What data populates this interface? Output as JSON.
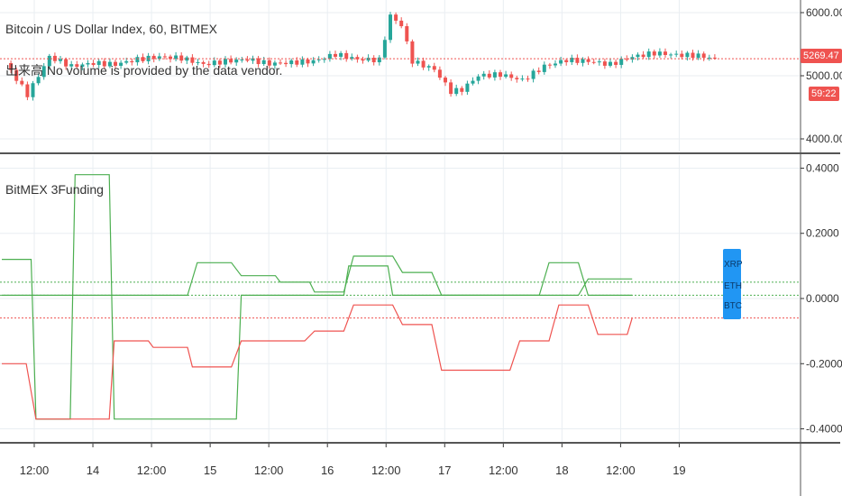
{
  "top_panel": {
    "title": "Bitcoin / US Dollar Index, 60, BITMEX",
    "volume_note": "出来高 No volume is provided by the data vendor.",
    "price_tag": "5269.47",
    "countdown_tag": "59:22",
    "price_line": 5269.47
  },
  "bottom_panel": {
    "title": "BitMEX 3Funding",
    "legend_tags": [
      "XRP",
      "ETH",
      "BTC"
    ]
  },
  "colors": {
    "up": "#26a69a",
    "down": "#ef5350",
    "green_line": "#4caf50",
    "red_line": "#ef5350",
    "axis": "#333333",
    "grid": "#e9eef2",
    "tag_blue": "#2196f3"
  },
  "chart_data": [
    {
      "type": "candlestick",
      "title": "Bitcoin / US Dollar Index, 60, BITMEX",
      "ylim": [
        3800,
        6200
      ],
      "y_ticks": [
        "6000.00",
        "5000.00",
        "4000.00"
      ],
      "y_tick_values": [
        6000,
        5000,
        4000
      ],
      "price_samples": [
        [
          0,
          5200
        ],
        [
          4,
          4700
        ],
        [
          8,
          5300
        ],
        [
          12,
          5150
        ],
        [
          16,
          5200
        ],
        [
          20,
          5180
        ],
        [
          24,
          5260
        ],
        [
          28,
          5300
        ],
        [
          32,
          5280
        ],
        [
          36,
          5180
        ],
        [
          40,
          5230
        ],
        [
          44,
          5260
        ],
        [
          48,
          5190
        ],
        [
          52,
          5210
        ],
        [
          56,
          5230
        ],
        [
          60,
          5340
        ],
        [
          64,
          5260
        ],
        [
          68,
          5250
        ],
        [
          70,
          5950
        ],
        [
          72,
          5800
        ],
        [
          74,
          5230
        ],
        [
          78,
          5100
        ],
        [
          81,
          4750
        ],
        [
          83,
          4780
        ],
        [
          86,
          5000
        ],
        [
          90,
          5020
        ],
        [
          94,
          4930
        ],
        [
          98,
          5150
        ],
        [
          102,
          5250
        ],
        [
          106,
          5230
        ],
        [
          110,
          5180
        ],
        [
          114,
          5300
        ],
        [
          118,
          5360
        ],
        [
          122,
          5330
        ],
        [
          126,
          5320
        ],
        [
          129,
          5269
        ]
      ]
    },
    {
      "type": "line",
      "title": "BitMEX 3Funding",
      "ylim": [
        -0.44,
        0.44
      ],
      "y_ticks": [
        "0.4000",
        "0.2000",
        "0.0000",
        "-0.2000",
        "-0.4000"
      ],
      "y_tick_values": [
        0.4,
        0.2,
        0.0,
        -0.2,
        -0.4
      ],
      "reference_lines": [
        {
          "color": "green",
          "value": 0.05
        },
        {
          "color": "green",
          "value": 0.01
        },
        {
          "color": "red",
          "value": -0.06
        }
      ],
      "series": [
        {
          "color": "green",
          "points": [
            [
              0,
              0.12
            ],
            [
              6,
              0.12
            ],
            [
              7,
              -0.37
            ],
            [
              14,
              -0.37
            ],
            [
              15,
              0.38
            ],
            [
              22,
              0.38
            ],
            [
              23,
              -0.37
            ],
            [
              48,
              -0.37
            ],
            [
              49,
              0.01
            ],
            [
              62,
              0.01
            ],
            [
              63,
              0.01
            ],
            [
              70,
              0.01
            ],
            [
              71,
              0.1
            ],
            [
              79,
              0.1
            ],
            [
              80,
              0.01
            ],
            [
              110,
              0.01
            ],
            [
              111,
              0.01
            ],
            [
              118,
              0.01
            ],
            [
              120,
              0.06
            ],
            [
              129,
              0.06
            ]
          ]
        },
        {
          "color": "green",
          "points": [
            [
              0,
              0.01
            ],
            [
              38,
              0.01
            ],
            [
              40,
              0.11
            ],
            [
              47,
              0.11
            ],
            [
              49,
              0.07
            ],
            [
              56,
              0.07
            ],
            [
              57,
              0.05
            ],
            [
              63,
              0.05
            ],
            [
              64,
              0.02
            ],
            [
              70,
              0.02
            ],
            [
              72,
              0.13
            ],
            [
              80,
              0.13
            ],
            [
              82,
              0.08
            ],
            [
              88,
              0.08
            ],
            [
              90,
              0.01
            ],
            [
              110,
              0.01
            ],
            [
              112,
              0.11
            ],
            [
              118,
              0.11
            ],
            [
              120,
              0.01
            ],
            [
              129,
              0.01
            ]
          ]
        },
        {
          "color": "red",
          "points": [
            [
              0,
              -0.2
            ],
            [
              5,
              -0.2
            ],
            [
              7,
              -0.37
            ],
            [
              22,
              -0.37
            ],
            [
              23,
              -0.13
            ],
            [
              30,
              -0.13
            ],
            [
              31,
              -0.15
            ],
            [
              38,
              -0.15
            ],
            [
              39,
              -0.21
            ],
            [
              47,
              -0.21
            ],
            [
              49,
              -0.13
            ],
            [
              62,
              -0.13
            ],
            [
              64,
              -0.1
            ],
            [
              70,
              -0.1
            ],
            [
              72,
              -0.02
            ],
            [
              80,
              -0.02
            ],
            [
              82,
              -0.08
            ],
            [
              88,
              -0.08
            ],
            [
              90,
              -0.22
            ],
            [
              104,
              -0.22
            ],
            [
              106,
              -0.13
            ],
            [
              112,
              -0.13
            ],
            [
              114,
              -0.02
            ],
            [
              120,
              -0.02
            ],
            [
              122,
              -0.11
            ],
            [
              128,
              -0.11
            ],
            [
              129,
              -0.06
            ]
          ]
        }
      ]
    }
  ],
  "x_axis": {
    "ticks": [
      "12:00",
      "14",
      "12:00",
      "15",
      "12:00",
      "16",
      "12:00",
      "17",
      "12:00",
      "18",
      "12:00",
      "19"
    ],
    "tick_index": [
      4,
      16,
      28,
      40,
      52,
      64,
      76,
      88,
      100,
      112,
      124,
      136
    ]
  }
}
